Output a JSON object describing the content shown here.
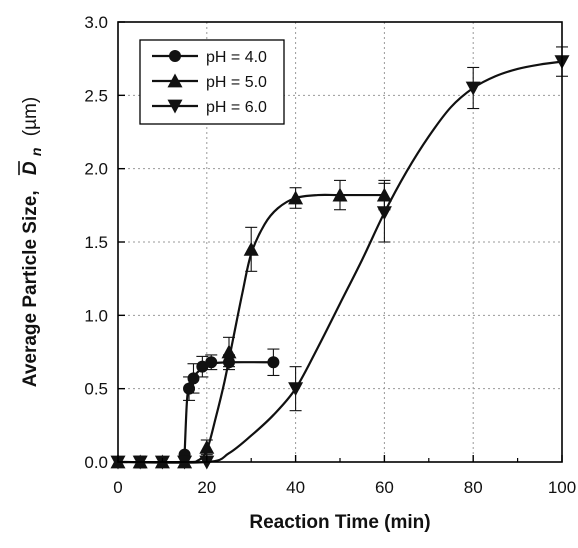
{
  "chart_data": {
    "type": "line",
    "xlabel": "Reaction Time (min)",
    "ylabel_prefix": "Average Particle Size,",
    "ylabel_symbol": "D",
    "ylabel_subscript": "n",
    "ylabel_unit": "(µm)",
    "xlim": [
      0,
      100
    ],
    "ylim": [
      0,
      3.0
    ],
    "xticks": [
      0,
      20,
      40,
      60,
      80,
      100
    ],
    "yticks": [
      0.0,
      0.5,
      1.0,
      1.5,
      2.0,
      2.5,
      3.0
    ],
    "ytick_labels": [
      "0.0",
      "0.5",
      "1.0",
      "1.5",
      "2.0",
      "2.5",
      "3.0"
    ],
    "grid": true,
    "legend_position": "top-left",
    "series": [
      {
        "name": "pH = 4.0",
        "marker": "circle",
        "x": [
          15,
          16,
          17,
          19,
          21,
          25,
          35
        ],
        "y": [
          0.05,
          0.5,
          0.57,
          0.65,
          0.68,
          0.68,
          0.68
        ],
        "err": [
          0.0,
          0.08,
          0.1,
          0.07,
          0.05,
          0.05,
          0.09
        ],
        "curve": [
          [
            15,
            0.05
          ],
          [
            15.5,
            0.4
          ],
          [
            16,
            0.52
          ],
          [
            17,
            0.58
          ],
          [
            19,
            0.64
          ],
          [
            21,
            0.67
          ],
          [
            25,
            0.68
          ],
          [
            35,
            0.68
          ]
        ]
      },
      {
        "name": "pH = 5.0",
        "marker": "triangle-up",
        "x": [
          0,
          5,
          10,
          15,
          20,
          25,
          30,
          40,
          50,
          60
        ],
        "y": [
          0.0,
          0.0,
          0.0,
          0.0,
          0.1,
          0.75,
          1.45,
          1.8,
          1.82,
          1.82
        ],
        "err": [
          0.0,
          0.04,
          0.03,
          0.03,
          0.05,
          0.1,
          0.15,
          0.07,
          0.1,
          0.1
        ],
        "curve": [
          [
            0,
            0.0
          ],
          [
            15,
            0.0
          ],
          [
            18,
            0.01
          ],
          [
            20,
            0.08
          ],
          [
            22,
            0.3
          ],
          [
            24,
            0.55
          ],
          [
            26,
            0.85
          ],
          [
            28,
            1.15
          ],
          [
            30,
            1.42
          ],
          [
            33,
            1.62
          ],
          [
            36,
            1.73
          ],
          [
            40,
            1.8
          ],
          [
            45,
            1.82
          ],
          [
            50,
            1.82
          ],
          [
            60,
            1.82
          ]
        ]
      },
      {
        "name": "pH = 6.0",
        "marker": "triangle-down",
        "x": [
          0,
          5,
          10,
          15,
          20,
          40,
          60,
          80,
          100
        ],
        "y": [
          0.0,
          0.0,
          0.0,
          0.0,
          0.0,
          0.5,
          1.7,
          2.55,
          2.73
        ],
        "err": [
          0.0,
          0.0,
          0.0,
          0.0,
          0.0,
          0.15,
          0.2,
          0.14,
          0.1
        ],
        "curve": [
          [
            0,
            0.0
          ],
          [
            20,
            0.0
          ],
          [
            25,
            0.06
          ],
          [
            30,
            0.18
          ],
          [
            35,
            0.32
          ],
          [
            40,
            0.5
          ],
          [
            45,
            0.78
          ],
          [
            50,
            1.08
          ],
          [
            55,
            1.38
          ],
          [
            60,
            1.7
          ],
          [
            65,
            1.98
          ],
          [
            70,
            2.22
          ],
          [
            75,
            2.42
          ],
          [
            80,
            2.55
          ],
          [
            85,
            2.63
          ],
          [
            90,
            2.68
          ],
          [
            95,
            2.71
          ],
          [
            100,
            2.73
          ]
        ]
      }
    ]
  }
}
